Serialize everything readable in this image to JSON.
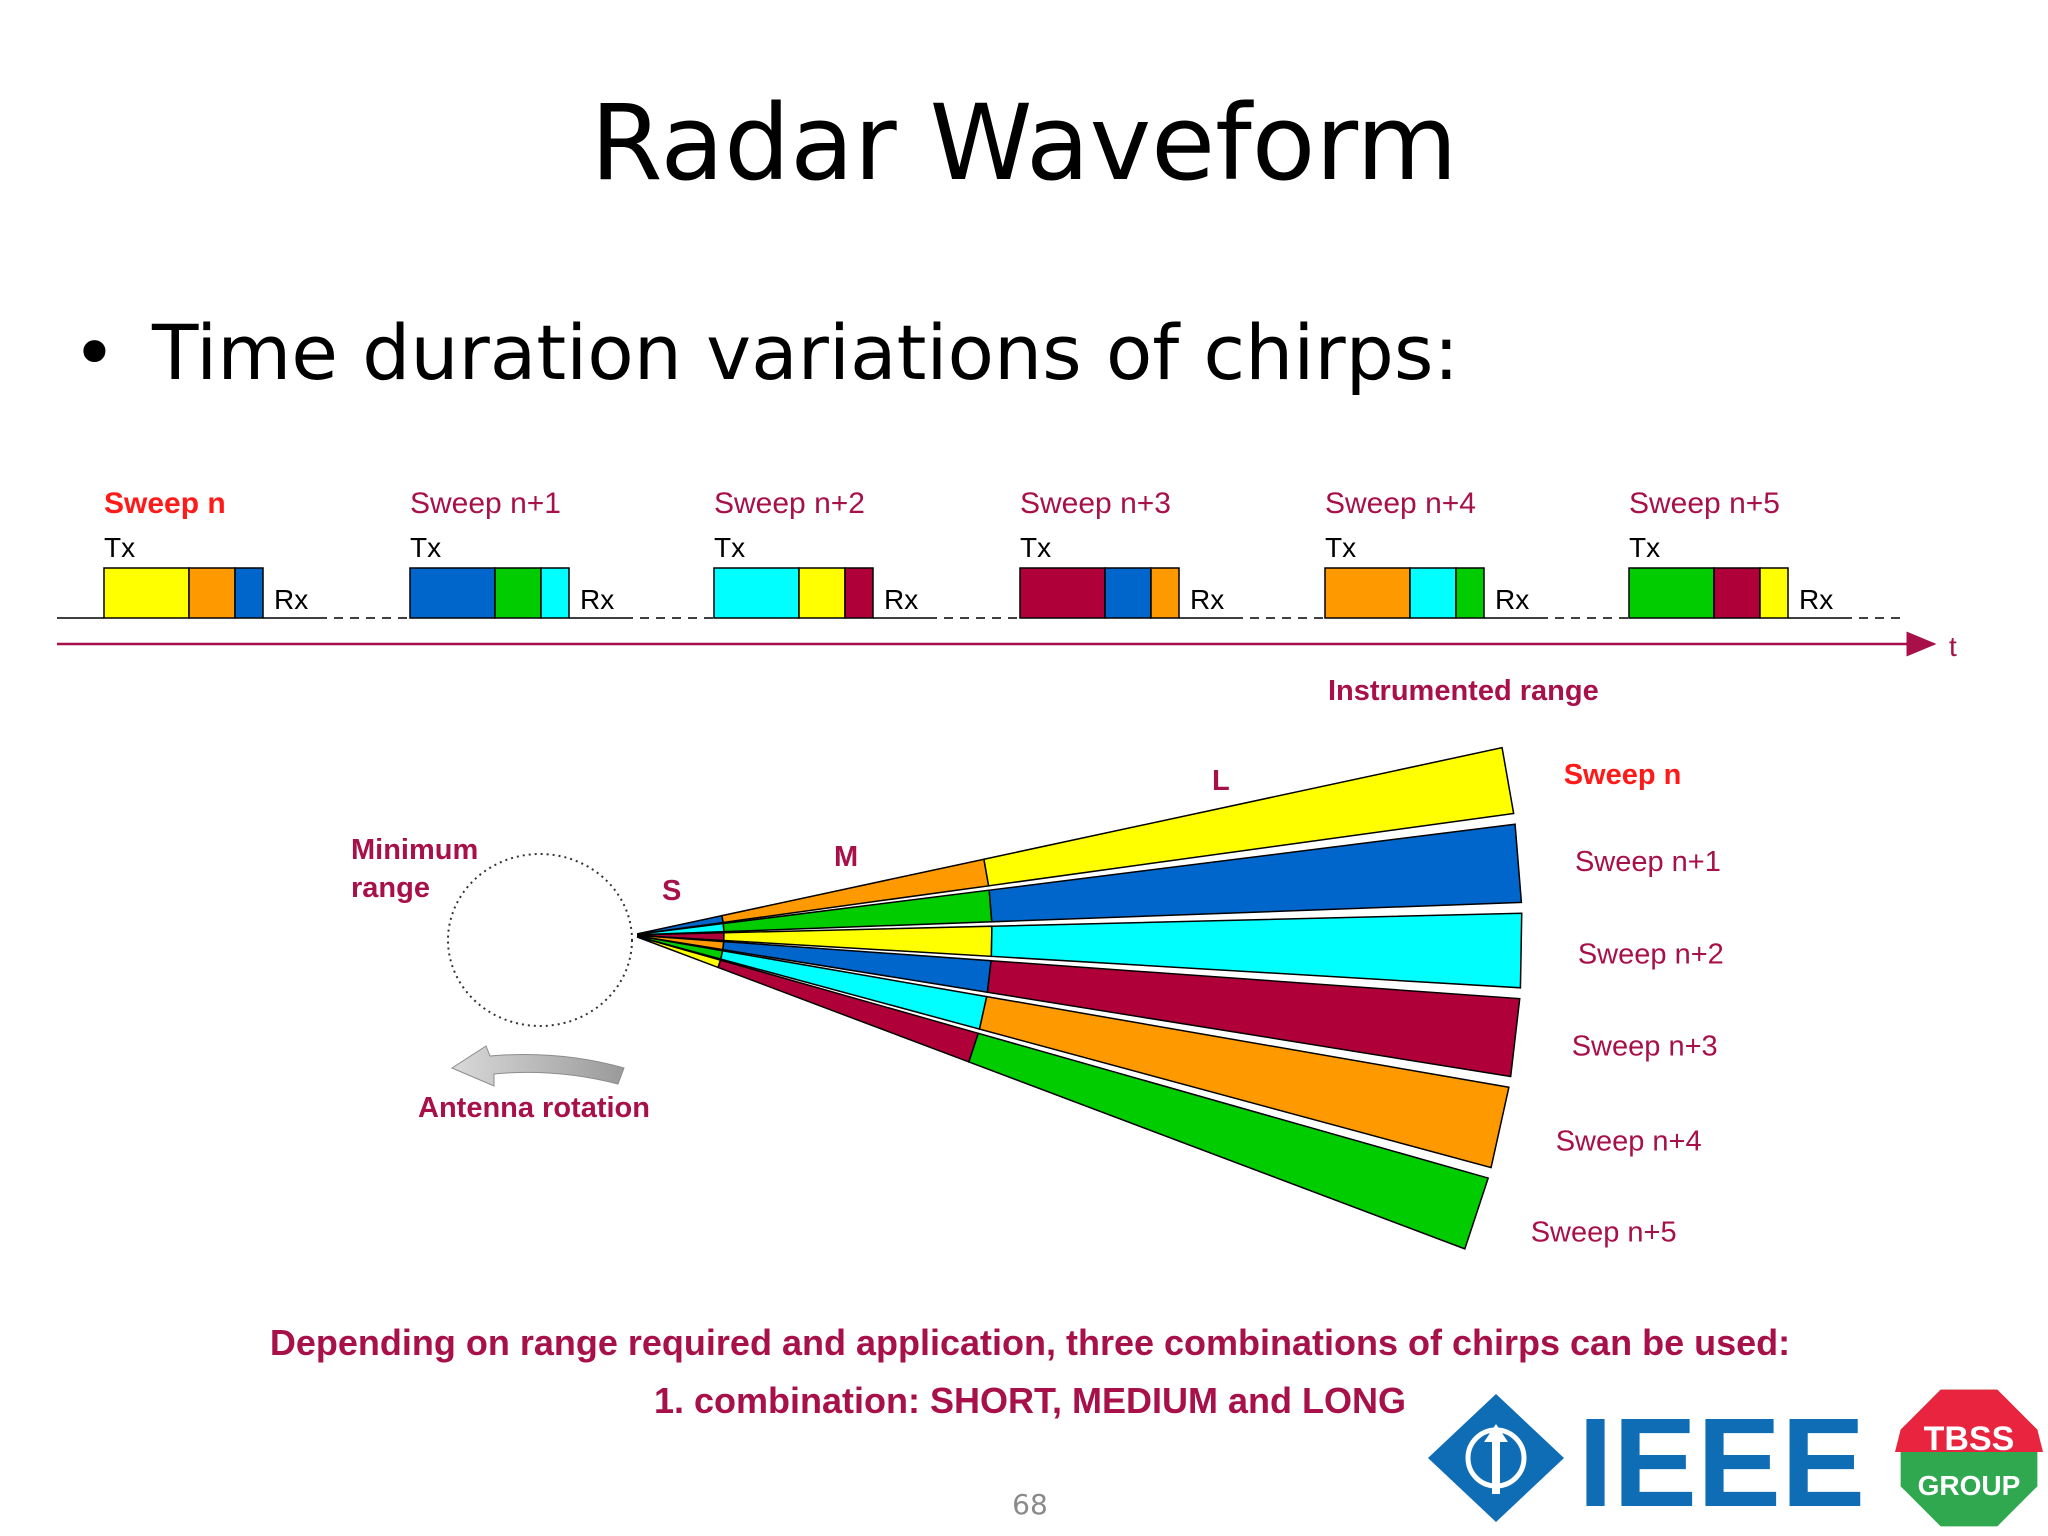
{
  "title": "Radar Waveform",
  "bullet": "Time duration variations of chirps:",
  "timeline": {
    "axis_label": "t",
    "tx_label": "Tx",
    "rx_label": "Rx",
    "sweeps": [
      {
        "label": "Sweep  n",
        "highlight": true,
        "blocks": [
          "yellow",
          "orange",
          "blue"
        ]
      },
      {
        "label": "Sweep n+1",
        "highlight": false,
        "blocks": [
          "blue",
          "green",
          "cyan"
        ]
      },
      {
        "label": "Sweep n+2",
        "highlight": false,
        "blocks": [
          "cyan",
          "yellow",
          "crimson"
        ]
      },
      {
        "label": "Sweep n+3",
        "highlight": false,
        "blocks": [
          "crimson",
          "blue",
          "orange"
        ]
      },
      {
        "label": "Sweep n+4",
        "highlight": false,
        "blocks": [
          "orange",
          "cyan",
          "green"
        ]
      },
      {
        "label": "Sweep n+5",
        "highlight": false,
        "blocks": [
          "green",
          "crimson",
          "yellow"
        ]
      }
    ]
  },
  "fan": {
    "instrumented_range": "Instrumented range",
    "minimum_range": [
      "Minimum",
      "range"
    ],
    "antenna_rotation": "Antenna rotation",
    "zone_labels": {
      "short": "S",
      "medium": "M",
      "long": "L"
    },
    "sweeps": [
      {
        "label": "Sweep n",
        "highlight": true,
        "segments": [
          "blue",
          "orange",
          "yellow"
        ]
      },
      {
        "label": "Sweep n+1",
        "highlight": false,
        "segments": [
          "cyan",
          "green",
          "blue"
        ]
      },
      {
        "label": "Sweep n+2",
        "highlight": false,
        "segments": [
          "crimson",
          "yellow",
          "cyan"
        ]
      },
      {
        "label": "Sweep n+3",
        "highlight": false,
        "segments": [
          "orange",
          "blue",
          "crimson"
        ]
      },
      {
        "label": "Sweep n+4",
        "highlight": false,
        "segments": [
          "green",
          "cyan",
          "orange"
        ]
      },
      {
        "label": "Sweep n+5",
        "highlight": false,
        "segments": [
          "yellow",
          "crimson",
          "green"
        ]
      }
    ]
  },
  "caption": {
    "line1": "Depending on range required and application, three combinations of chirps can be used:",
    "line2": "1. combination:  SHORT, MEDIUM and LONG"
  },
  "logos": {
    "ieee": "IEEE",
    "tbss_top": "TBSS",
    "tbss_bottom": "GROUP"
  },
  "page_number": "68",
  "colors": {
    "yellow": "#ffff00",
    "orange": "#ff9900",
    "blue": "#0066cc",
    "green": "#00cc00",
    "cyan": "#00ffff",
    "crimson": "#b0003a",
    "label_dark": "#a8104a",
    "label_red": "#ff1a1a",
    "ieee_blue": "#0e6db5",
    "tbss_red": "#e8243f",
    "tbss_green": "#2fa84f"
  }
}
